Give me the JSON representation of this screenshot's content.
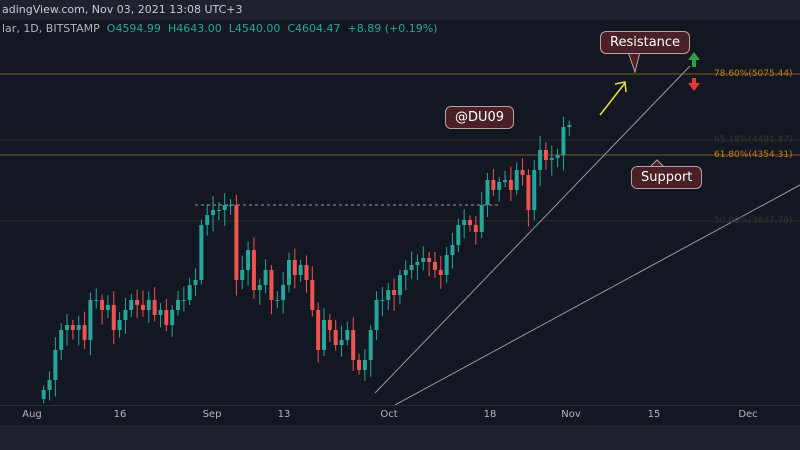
{
  "header": {
    "title": "adingView.com, Nov 03, 2021 13:08 UTC+3"
  },
  "legend": {
    "symbol": "lar, 1D, BITSTAMP",
    "o": "O4594.99",
    "h": "H4643.00",
    "l": "L4540.00",
    "c": "C4604.47",
    "change": "+8.89 (+0.19%)"
  },
  "fib_levels": [
    {
      "label": "78.60%(5075.44)"
    },
    {
      "label": "65.18%(4491.87)"
    },
    {
      "label": "61.80%(4354.31)"
    },
    {
      "label": "50.00%(3847.79)"
    }
  ],
  "annotations": {
    "resistance": "Resistance",
    "support": "Support",
    "watermark": "@DU09"
  },
  "x_axis": [
    "Aug",
    "16",
    "Sep",
    "13",
    "Oct",
    "18",
    "Nov",
    "15",
    "Dec"
  ],
  "colors": {
    "up": "#26a69a",
    "down": "#ef5350",
    "fib": "#c77d14",
    "arrow": "#e8e23a"
  },
  "chart_data": {
    "type": "candlestick",
    "start": "Aug 3",
    "closes": [
      2263,
      2352,
      2619,
      2797,
      2841,
      2797,
      2841,
      2708,
      3064,
      3064,
      2975,
      3020,
      2797,
      2886,
      2975,
      3064,
      3020,
      2975,
      3064,
      2930,
      2975,
      2841,
      2975,
      3064,
      3064,
      3197,
      3242,
      3731,
      3820,
      3865,
      3865,
      3909,
      3909,
      3242,
      3331,
      3508,
      3153,
      3197,
      3331,
      3064,
      3064,
      3197,
      3420,
      3286,
      3375,
      3242,
      2975,
      2619,
      2886,
      2797,
      2663,
      2708,
      2797,
      2530,
      2441,
      2530,
      2797,
      3064,
      3064,
      3153,
      3108,
      3286,
      3331,
      3375,
      3402,
      3438,
      3402,
      3331,
      3286,
      3464,
      3553,
      3731,
      3776,
      3731,
      3669,
      3909,
      4132,
      4043,
      4114,
      4132,
      4043,
      4221,
      4176,
      3865,
      4221,
      4399,
      4310,
      4328,
      4354,
      4603,
      4621
    ]
  }
}
